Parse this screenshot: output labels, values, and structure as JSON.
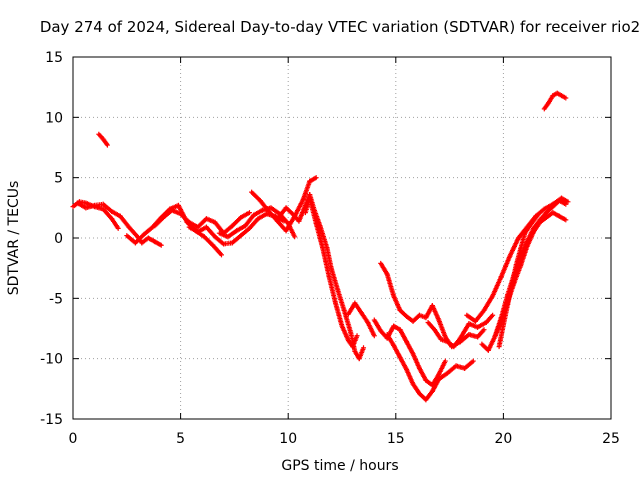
{
  "chart_data": {
    "type": "scatter",
    "title": "Day 274 of 2024, Sidereal Day-to-day VTEC variation (SDTVAR) for receiver rio2",
    "xlabel": "GPS time / hours",
    "ylabel": "SDTVAR / TECUs",
    "xlim": [
      0,
      25
    ],
    "ylim": [
      -15,
      15
    ],
    "xticks": [
      "0",
      "5",
      "10",
      "15",
      "20",
      "25"
    ],
    "yticks": [
      "15",
      "10",
      "5",
      "0",
      "-5",
      "-10",
      "-15"
    ],
    "grid": true,
    "marker": "plus",
    "color": "#ff0000",
    "series": [
      {
        "x": [
          0.0,
          0.3,
          0.6,
          1.0,
          1.4,
          1.8,
          2.1
        ],
        "y": [
          2.6,
          3.0,
          2.9,
          2.6,
          2.4,
          1.6,
          0.8
        ]
      },
      {
        "x": [
          0.2,
          0.6,
          1.0,
          1.4,
          1.8,
          2.2,
          2.6,
          3.0,
          3.2,
          3.5,
          3.8,
          4.1
        ],
        "y": [
          2.9,
          2.5,
          2.7,
          2.8,
          2.2,
          1.8,
          0.9,
          0.1,
          -0.4,
          0.0,
          -0.3,
          -0.6
        ]
      },
      {
        "x": [
          1.2,
          1.4,
          1.6
        ],
        "y": [
          8.6,
          8.2,
          7.7
        ]
      },
      {
        "x": [
          2.5,
          2.9,
          3.3,
          3.7,
          4.1,
          4.5,
          4.9,
          5.3,
          5.7,
          6.1,
          6.5,
          6.9
        ],
        "y": [
          0.2,
          -0.4,
          0.3,
          0.9,
          1.7,
          2.4,
          2.7,
          1.3,
          0.6,
          0.1,
          -0.6,
          -1.4
        ]
      },
      {
        "x": [
          3.8,
          4.2,
          4.6,
          5.0,
          5.4,
          5.8,
          6.2,
          6.6,
          7.0,
          7.4,
          7.8,
          8.2
        ],
        "y": [
          1.0,
          1.7,
          2.3,
          2.0,
          1.3,
          0.9,
          1.6,
          1.3,
          0.4,
          1.0,
          1.7,
          2.1
        ]
      },
      {
        "x": [
          5.4,
          5.8,
          6.2,
          6.6,
          7.0,
          7.4,
          7.8,
          8.2,
          8.6,
          9.0,
          9.4,
          9.8
        ],
        "y": [
          0.9,
          0.5,
          0.9,
          0.1,
          -0.5,
          -0.4,
          0.2,
          0.8,
          1.6,
          2.0,
          1.8,
          1.4
        ]
      },
      {
        "x": [
          6.8,
          7.2,
          7.6,
          8.0,
          8.4,
          8.8,
          9.2,
          9.6,
          10.0,
          10.3
        ],
        "y": [
          0.4,
          0.1,
          0.6,
          1.0,
          1.9,
          2.3,
          2.5,
          2.0,
          1.2,
          0.1
        ]
      },
      {
        "x": [
          8.3,
          8.7,
          9.1,
          9.5,
          9.9,
          10.3,
          10.7,
          11.0,
          11.3
        ],
        "y": [
          3.8,
          3.1,
          2.2,
          1.4,
          0.6,
          1.8,
          3.2,
          4.7,
          5.0
        ]
      },
      {
        "x": [
          9.6,
          9.9,
          10.2,
          10.5,
          10.8,
          11.0,
          11.2,
          11.5,
          11.8,
          12.0,
          12.3,
          12.6,
          12.9,
          13.1,
          13.3,
          13.5
        ],
        "y": [
          1.8,
          2.5,
          2.0,
          1.4,
          2.7,
          3.6,
          2.4,
          0.9,
          -0.8,
          -2.5,
          -4.3,
          -6.0,
          -7.8,
          -9.4,
          -10.0,
          -9.1
        ]
      },
      {
        "x": [
          10.8,
          11.0,
          11.3,
          11.6,
          11.9,
          12.2,
          12.5,
          12.8,
          13.0,
          13.2
        ],
        "y": [
          2.1,
          3.3,
          1.2,
          -0.8,
          -3.2,
          -5.4,
          -7.3,
          -8.5,
          -9.0,
          -8.1
        ]
      },
      {
        "x": [
          12.8,
          13.1,
          13.4,
          13.7,
          14.0
        ],
        "y": [
          -6.3,
          -5.4,
          -6.2,
          -7.0,
          -8.1
        ]
      },
      {
        "x": [
          14.3,
          14.6,
          14.9,
          15.2,
          15.5,
          15.8,
          16.1,
          16.4,
          16.7,
          17.0,
          17.3,
          17.6,
          18.0,
          18.4,
          18.8,
          19.1
        ],
        "y": [
          -2.1,
          -3.0,
          -4.8,
          -6.0,
          -6.5,
          -6.9,
          -6.4,
          -6.6,
          -5.6,
          -6.8,
          -8.2,
          -9.0,
          -8.6,
          -8.0,
          -8.2,
          -7.6
        ]
      },
      {
        "x": [
          14.0,
          14.3,
          14.6,
          14.9,
          15.2,
          15.5,
          15.8,
          16.1,
          16.4,
          16.7,
          17.0,
          17.3
        ],
        "y": [
          -6.8,
          -7.7,
          -8.3,
          -7.3,
          -7.6,
          -8.6,
          -9.6,
          -10.8,
          -11.8,
          -12.2,
          -11.3,
          -10.2
        ]
      },
      {
        "x": [
          14.6,
          14.9,
          15.2,
          15.5,
          15.8,
          16.1,
          16.4,
          16.7,
          17.0,
          17.4,
          17.8,
          18.2,
          18.6
        ],
        "y": [
          -8.0,
          -8.9,
          -9.9,
          -10.9,
          -12.1,
          -12.9,
          -13.4,
          -12.7,
          -11.7,
          -11.2,
          -10.6,
          -10.8,
          -10.2
        ]
      },
      {
        "x": [
          16.5,
          16.8,
          17.1,
          17.4,
          17.7,
          18.0,
          18.4,
          18.8,
          19.2,
          19.5
        ],
        "y": [
          -7.0,
          -7.6,
          -8.4,
          -8.6,
          -9.0,
          -8.3,
          -7.1,
          -7.4,
          -7.0,
          -6.4
        ]
      },
      {
        "x": [
          18.3,
          18.7,
          19.1,
          19.5,
          19.9,
          20.3,
          20.7,
          21.1,
          21.5,
          21.9,
          22.3,
          22.7,
          23.0
        ],
        "y": [
          -6.4,
          -6.9,
          -6.0,
          -4.8,
          -3.2,
          -1.5,
          0.0,
          0.9,
          1.8,
          2.4,
          2.8,
          3.3,
          3.0
        ]
      },
      {
        "x": [
          19.0,
          19.3,
          19.6,
          19.9,
          20.2,
          20.5,
          20.8,
          21.1,
          21.4,
          21.7,
          22.0,
          22.3,
          22.6,
          22.9
        ],
        "y": [
          -8.8,
          -9.3,
          -8.2,
          -6.9,
          -5.3,
          -3.7,
          -2.3,
          -0.7,
          0.5,
          1.3,
          1.7,
          2.1,
          1.8,
          1.5
        ]
      },
      {
        "x": [
          19.6,
          19.9,
          20.2,
          20.5,
          20.8,
          21.1,
          21.4,
          21.7,
          22.0,
          22.3,
          22.6,
          22.9
        ],
        "y": [
          -8.2,
          -6.6,
          -4.7,
          -3.0,
          -1.6,
          -0.3,
          0.8,
          1.5,
          2.1,
          2.6,
          3.1,
          2.8
        ]
      },
      {
        "x": [
          19.8,
          20.0,
          20.2,
          20.4,
          20.6,
          20.8,
          21.0,
          21.3,
          21.6
        ],
        "y": [
          -9.0,
          -7.2,
          -5.5,
          -3.8,
          -2.2,
          -0.9,
          0.4,
          1.2,
          1.9
        ]
      },
      {
        "x": [
          21.9,
          22.1,
          22.3,
          22.5,
          22.7,
          22.9
        ],
        "y": [
          10.7,
          11.2,
          11.8,
          12.0,
          11.8,
          11.6
        ]
      }
    ]
  }
}
